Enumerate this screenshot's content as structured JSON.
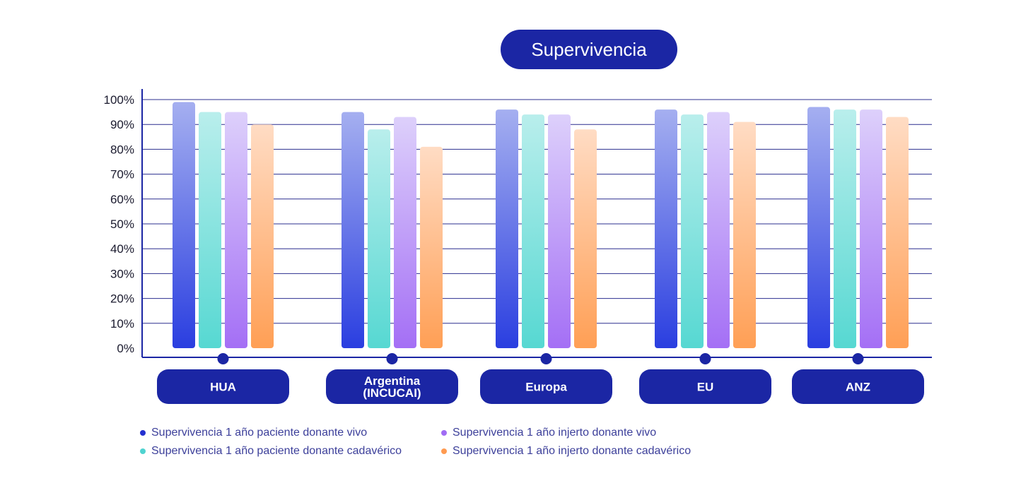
{
  "chart_data": {
    "type": "bar",
    "title": "Supervivencia",
    "categories": [
      "HUA",
      "Argentina\n(INCUCAI)",
      "Europa",
      "EU",
      "ANZ"
    ],
    "ylim": [
      0,
      100
    ],
    "yticks": [
      0,
      10,
      20,
      30,
      40,
      50,
      60,
      70,
      80,
      90,
      100
    ],
    "ytick_labels": [
      "0%",
      "10%",
      "20%",
      "30%",
      "40%",
      "50%",
      "60%",
      "70%",
      "80%",
      "90%",
      "100%"
    ],
    "grid": true,
    "legend_position": "bottom",
    "series": [
      {
        "name": "Supervivencia 1 año paciente donante vivo",
        "values": [
          99,
          95,
          96,
          96,
          97
        ],
        "color": "#2a3ee0",
        "color_top": "#a5aff0",
        "legend_color": "#2430d0"
      },
      {
        "name": "Supervivencia 1 año paciente donante cadavérico",
        "values": [
          95,
          88,
          94,
          94,
          96
        ],
        "color": "#56d8d2",
        "color_top": "#b9eeec",
        "legend_color": "#4fd3d0"
      },
      {
        "name": "Supervivencia 1 año injerto donante vivo",
        "values": [
          95,
          93,
          94,
          95,
          96
        ],
        "color": "#a46ff5",
        "color_top": "#ddd0fb",
        "legend_color": "#a06cf4"
      },
      {
        "name": "Supervivencia 1 año injerto donante cadavérico",
        "values": [
          90,
          81,
          88,
          91,
          93
        ],
        "color": "#ff9f55",
        "color_top": "#ffdcc4",
        "legend_color": "#ff9a50"
      }
    ]
  },
  "colors": {
    "accent": "#1b26a4",
    "gridline": "#2b2f8f",
    "axis": "#1b26a4",
    "tick_text": "#1a1a2e"
  }
}
